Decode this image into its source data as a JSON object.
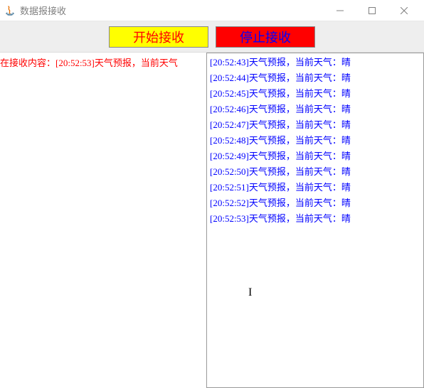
{
  "window": {
    "title": "数据报接收"
  },
  "toolbar": {
    "start_label": "开始接收",
    "stop_label": "停止接收"
  },
  "status": {
    "text": "在接收内容：[20:52:53]天气预报，当前天气"
  },
  "log": {
    "lines": [
      "[20:52:43]天气预报，当前天气：晴",
      "[20:52:44]天气预报，当前天气：晴",
      "[20:52:45]天气预报，当前天气：晴",
      "[20:52:46]天气预报，当前天气：晴",
      "[20:52:47]天气预报，当前天气：晴",
      "[20:52:48]天气预报，当前天气：晴",
      "[20:52:49]天气预报，当前天气：晴",
      "[20:52:50]天气预报，当前天气：晴",
      "[20:52:51]天气预报，当前天气：晴",
      "[20:52:52]天气预报，当前天气：晴",
      "[20:52:53]天气预报，当前天气：晴"
    ]
  },
  "colors": {
    "start_bg": "#ffff00",
    "start_fg": "#ff0000",
    "stop_bg": "#ff0000",
    "stop_fg": "#0000ff",
    "status_fg": "#ff0000",
    "log_fg": "#0000ff",
    "toolbar_bg": "#eeeeee"
  }
}
